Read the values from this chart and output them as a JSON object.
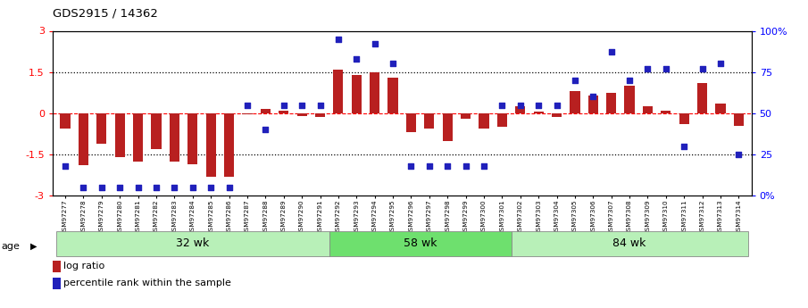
{
  "title": "GDS2915 / 14362",
  "samples": [
    "GSM97277",
    "GSM97278",
    "GSM97279",
    "GSM97280",
    "GSM97281",
    "GSM97282",
    "GSM97283",
    "GSM97284",
    "GSM97285",
    "GSM97286",
    "GSM97287",
    "GSM97288",
    "GSM97289",
    "GSM97290",
    "GSM97291",
    "GSM97292",
    "GSM97293",
    "GSM97294",
    "GSM97295",
    "GSM97296",
    "GSM97297",
    "GSM97298",
    "GSM97299",
    "GSM97300",
    "GSM97301",
    "GSM97302",
    "GSM97303",
    "GSM97304",
    "GSM97305",
    "GSM97306",
    "GSM97307",
    "GSM97308",
    "GSM97309",
    "GSM97310",
    "GSM97311",
    "GSM97312",
    "GSM97313",
    "GSM97314"
  ],
  "log_ratio": [
    -0.55,
    -1.9,
    -1.1,
    -1.6,
    -1.75,
    -1.3,
    -1.75,
    -1.85,
    -2.3,
    -2.3,
    -0.05,
    0.15,
    0.1,
    -0.1,
    -0.15,
    1.6,
    1.4,
    1.5,
    1.3,
    -0.7,
    -0.55,
    -1.0,
    -0.2,
    -0.55,
    -0.5,
    0.25,
    0.05,
    -0.15,
    0.8,
    0.65,
    0.75,
    1.0,
    0.25,
    0.1,
    -0.4,
    1.1,
    0.35,
    -0.45
  ],
  "percentile": [
    18,
    5,
    5,
    5,
    5,
    5,
    5,
    5,
    5,
    5,
    55,
    40,
    55,
    55,
    55,
    95,
    83,
    92,
    80,
    18,
    18,
    18,
    18,
    18,
    55,
    55,
    55,
    55,
    70,
    60,
    87,
    70,
    77,
    77,
    30,
    77,
    80,
    25
  ],
  "groups": [
    {
      "label": "32 wk",
      "start": 0,
      "end": 15
    },
    {
      "label": "58 wk",
      "start": 15,
      "end": 25
    },
    {
      "label": "84 wk",
      "start": 25,
      "end": 38
    }
  ],
  "group_colors": [
    "#b8f0b8",
    "#6ee06e",
    "#b8f0b8"
  ],
  "bar_color": "#b82020",
  "scatter_color": "#2020bb",
  "ylim_left": [
    -3,
    3
  ],
  "ylim_right": [
    0,
    100
  ],
  "yticks_left": [
    -3,
    -1.5,
    0,
    1.5,
    3
  ],
  "yticks_right": [
    0,
    25,
    50,
    75,
    100
  ],
  "yticklabels_left": [
    "-3",
    "-1.5",
    "0",
    "1.5",
    "3"
  ],
  "yticklabels_right": [
    "0%",
    "25",
    "50",
    "75",
    "100%"
  ],
  "legend_items": [
    {
      "label": "log ratio",
      "color": "#b82020"
    },
    {
      "label": "percentile rank within the sample",
      "color": "#2020bb"
    }
  ],
  "age_label": "age"
}
